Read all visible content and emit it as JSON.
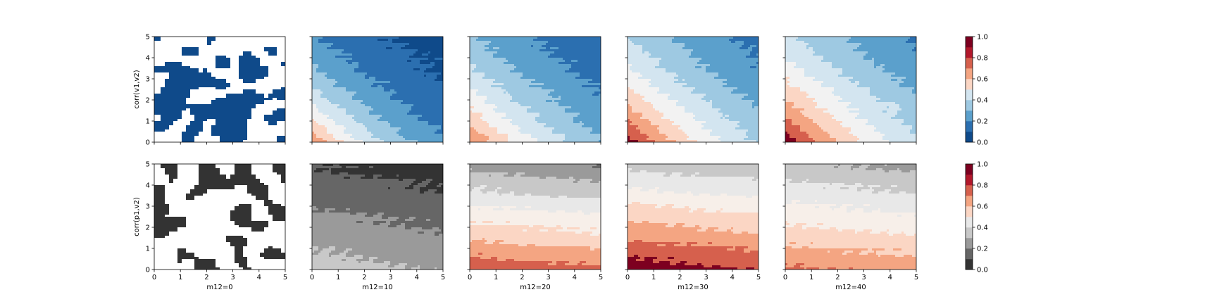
{
  "chart_data": {
    "type": "contourf-grid",
    "rows": [
      {
        "ylabel": "corr(v1,v2)",
        "colormap_scheme": "blue-to-red",
        "panels": [
          {
            "xlabel": "",
            "pattern": "binary-noise",
            "seed": 11
          },
          {
            "xlabel": "",
            "pattern": "diag",
            "s0": 0.8,
            "decay": 0.115,
            "blobs": false
          },
          {
            "xlabel": "",
            "pattern": "diag",
            "s0": 0.82,
            "decay": 0.085,
            "blobs": false
          },
          {
            "xlabel": "",
            "pattern": "diag",
            "s0": 0.96,
            "decay": 0.078,
            "blobs": false
          },
          {
            "xlabel": "",
            "pattern": "diag",
            "s0": 0.98,
            "decay": 0.072,
            "blobs": true
          }
        ],
        "colorbar": {
          "ticks": [
            "0.0",
            "0.2",
            "0.4",
            "0.6",
            "0.8",
            "1.0"
          ],
          "levels": [
            0.0,
            0.1,
            0.2,
            0.3,
            0.4,
            0.5,
            0.6,
            0.7,
            0.8,
            0.9,
            1.0
          ]
        }
      },
      {
        "ylabel": "corr(p1,v2)",
        "colormap_scheme": "gray-to-red",
        "panels": [
          {
            "xlabel": "m12=0",
            "pattern": "binary-noise",
            "seed": 29
          },
          {
            "xlabel": "m12=10",
            "pattern": "horiz",
            "a": 0.35,
            "slope": 0.05,
            "tilt": -0.012
          },
          {
            "xlabel": "m12=20",
            "pattern": "horiz",
            "a": 0.88,
            "slope": 0.125,
            "tilt": -0.012
          },
          {
            "xlabel": "m12=30",
            "pattern": "horiz",
            "a": 0.97,
            "slope": 0.12,
            "tilt": -0.012
          },
          {
            "xlabel": "m12=40",
            "pattern": "horiz",
            "a": 0.82,
            "slope": 0.1,
            "tilt": -0.01
          }
        ],
        "colorbar": {
          "ticks": [
            "0.0",
            "0.2",
            "0.4",
            "0.6",
            "0.8",
            "1.0"
          ],
          "levels": [
            0.0,
            0.1,
            0.2,
            0.3,
            0.4,
            0.5,
            0.6,
            0.7,
            0.8,
            0.9,
            1.0
          ]
        }
      }
    ],
    "x_ticks": [
      "0",
      "1",
      "2",
      "3",
      "4",
      "5"
    ],
    "y_ticks": [
      "0",
      "1",
      "2",
      "3",
      "4",
      "5"
    ],
    "xlim": [
      0,
      5
    ],
    "ylim": [
      0,
      5
    ],
    "clim": [
      0,
      1
    ],
    "colors": {
      "blue_to_red": [
        "#0f4a8a",
        "#2b6fb0",
        "#5ba0cc",
        "#9ec9e2",
        "#d3e5f0",
        "#f2f2f2",
        "#fbd6c4",
        "#f4a582",
        "#d6604d",
        "#b2182b",
        "#7d0020"
      ],
      "gray_to_red": [
        "#333333",
        "#666666",
        "#9a9a9a",
        "#c8c8c8",
        "#e8e8e8",
        "#f7efe9",
        "#fbd6c4",
        "#f4a582",
        "#d6604d",
        "#b2182b",
        "#7d0020"
      ]
    }
  }
}
